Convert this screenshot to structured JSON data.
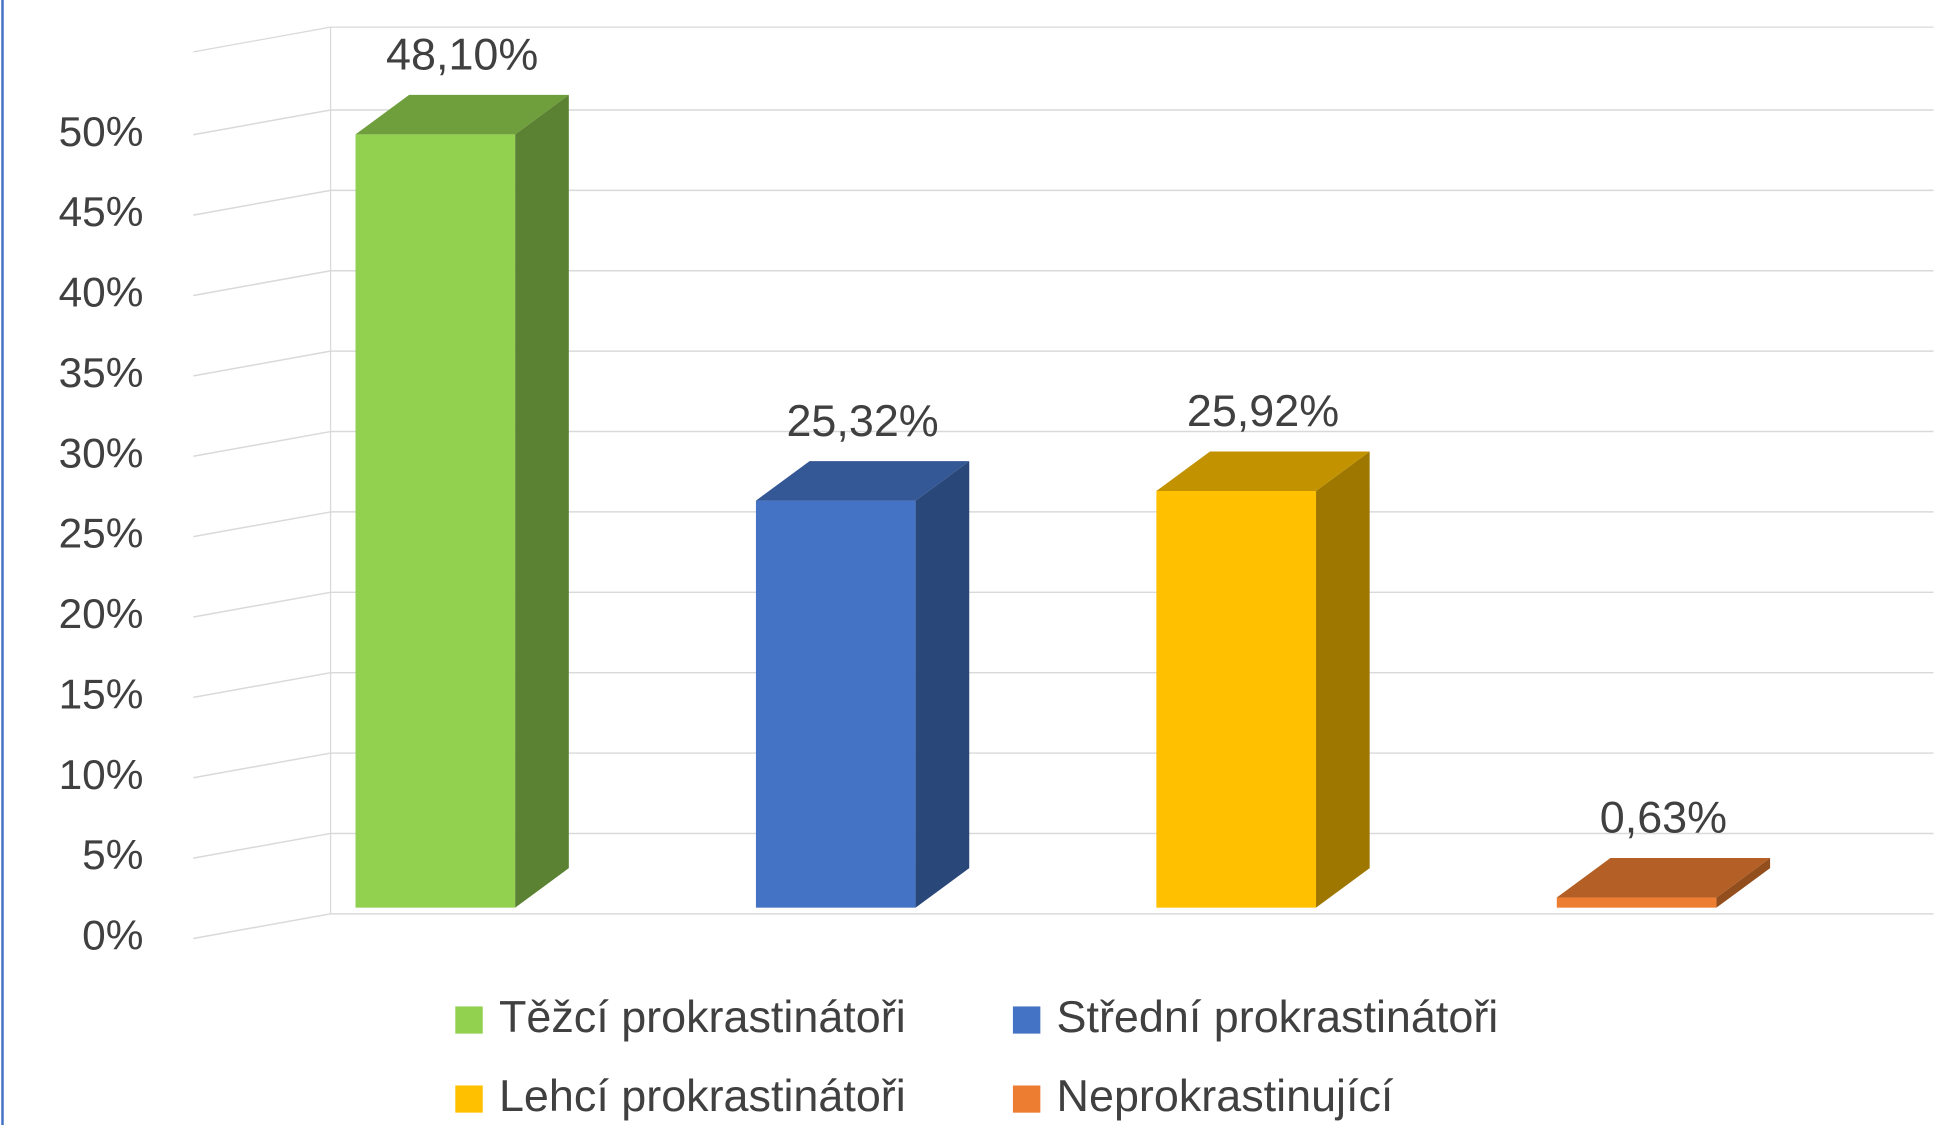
{
  "chart_data": {
    "type": "bar3d",
    "series": [
      {
        "name": "Těžcí prokrastinátoři",
        "color": "#92d050",
        "values": [
          48.1
        ],
        "value_labels": [
          "48,10%"
        ]
      },
      {
        "name": "Střední prokrastinátoři",
        "color": "#4472c4",
        "values": [
          25.32
        ],
        "value_labels": [
          "25,32%"
        ]
      },
      {
        "name": "Lehcí prokrastinátoři",
        "color": "#ffc000",
        "values": [
          25.92
        ],
        "value_labels": [
          "25,92%"
        ]
      },
      {
        "name": "Neprokrastinující",
        "color": "#ed7d31",
        "values": [
          0.63
        ],
        "value_labels": [
          "0,63%"
        ]
      }
    ],
    "ylim": [
      0,
      55
    ],
    "yticks": [
      {
        "value": 0,
        "label": "0%"
      },
      {
        "value": 5,
        "label": "5%"
      },
      {
        "value": 10,
        "label": "10%"
      },
      {
        "value": 15,
        "label": "15%"
      },
      {
        "value": 20,
        "label": "20%"
      },
      {
        "value": 25,
        "label": "25%"
      },
      {
        "value": 30,
        "label": "30%"
      },
      {
        "value": 35,
        "label": "35%"
      },
      {
        "value": 40,
        "label": "40%"
      },
      {
        "value": 45,
        "label": "45%"
      },
      {
        "value": 50,
        "label": "50%"
      }
    ],
    "grid": true,
    "legend": "bottom"
  }
}
